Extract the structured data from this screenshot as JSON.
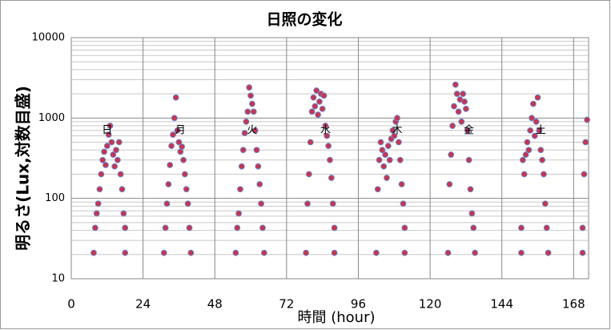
{
  "chart_data": {
    "type": "scatter",
    "title": "日照の変化",
    "x_label": "時間 (hour)",
    "y_label": "明るさ(Lux,対数目盛)",
    "x": [
      7.5,
      8,
      8.5,
      9,
      9.5,
      10,
      10.5,
      11,
      11.5,
      12,
      12.5,
      13,
      13.5,
      14,
      14.5,
      15,
      15.5,
      16,
      16.5,
      17,
      17.5,
      18,
      18,
      31,
      31.5,
      32,
      32.5,
      33,
      33.5,
      34,
      34.5,
      35,
      35.5,
      36,
      36.5,
      37,
      37.5,
      38,
      38.5,
      39,
      39.5,
      40,
      55,
      55.5,
      56,
      56.5,
      57,
      57.5,
      58,
      58.5,
      59,
      59.5,
      60,
      60.5,
      61,
      61.5,
      62,
      62.5,
      63,
      63.5,
      64,
      64.5,
      78.5,
      79,
      79.5,
      80,
      80.5,
      81,
      81.5,
      82,
      82.5,
      83,
      83.5,
      84,
      84.5,
      85,
      85.5,
      86,
      86.5,
      87,
      87.5,
      88,
      88,
      102,
      102.5,
      103,
      103.5,
      104,
      104.5,
      105,
      105.5,
      106,
      106.5,
      107,
      107.5,
      108,
      108.5,
      109,
      109.5,
      110,
      110.5,
      111,
      111.5,
      111.5,
      126,
      126.5,
      127,
      127.5,
      128,
      128.5,
      129,
      129.5,
      130,
      130.5,
      131,
      131.5,
      132,
      132.5,
      133,
      133.5,
      134,
      134.5,
      135,
      150.5,
      150.5,
      151,
      151.5,
      152,
      152.5,
      153,
      153.5,
      154,
      154.5,
      155,
      155.5,
      156,
      156.5,
      157,
      157.5,
      158,
      158.5,
      159,
      159.5,
      171,
      171,
      171.5,
      172,
      172.5
    ],
    "values": [
      21,
      43,
      65,
      86,
      130,
      200,
      300,
      380,
      260,
      450,
      620,
      800,
      500,
      350,
      250,
      400,
      300,
      500,
      200,
      130,
      65,
      43,
      21,
      21,
      43,
      86,
      150,
      260,
      450,
      620,
      1000,
      1800,
      700,
      500,
      380,
      440,
      300,
      200,
      130,
      86,
      43,
      21,
      21,
      43,
      65,
      130,
      250,
      400,
      650,
      900,
      1200,
      2400,
      1900,
      1500,
      1200,
      700,
      400,
      250,
      150,
      86,
      43,
      21,
      21,
      86,
      200,
      500,
      1200,
      1800,
      1400,
      2200,
      1100,
      1600,
      2000,
      1300,
      1900,
      800,
      600,
      450,
      300,
      180,
      86,
      43,
      21,
      21,
      130,
      300,
      500,
      400,
      250,
      350,
      180,
      450,
      300,
      550,
      700,
      600,
      900,
      1000,
      500,
      300,
      150,
      86,
      43,
      21,
      21,
      150,
      350,
      800,
      1400,
      2600,
      2000,
      1200,
      1700,
      900,
      2000,
      1600,
      1300,
      700,
      300,
      130,
      65,
      43,
      21,
      21,
      43,
      300,
      200,
      350,
      500,
      400,
      700,
      1000,
      1500,
      600,
      900,
      1800,
      700,
      400,
      300,
      200,
      86,
      43,
      21,
      21,
      43,
      200,
      500,
      950
    ],
    "color": "#c8344c",
    "edge_color": "#6f82c8",
    "annotations": [
      {
        "text": "日",
        "x": 12,
        "y": 700
      },
      {
        "text": "月",
        "x": 36.5,
        "y": 700
      },
      {
        "text": "火",
        "x": 60.5,
        "y": 700
      },
      {
        "text": "水",
        "x": 85,
        "y": 700
      },
      {
        "text": "木",
        "x": 109,
        "y": 700
      },
      {
        "text": "金",
        "x": 133,
        "y": 700
      },
      {
        "text": "土",
        "x": 157,
        "y": 700
      }
    ],
    "xlim": [
      0,
      173
    ],
    "xticks": [
      0,
      24,
      48,
      72,
      96,
      120,
      144,
      168
    ],
    "ylim": [
      10,
      10000
    ],
    "yticks": [
      10,
      100,
      1000,
      10000
    ],
    "log_y": true,
    "grid": true,
    "minor_grid": true
  }
}
